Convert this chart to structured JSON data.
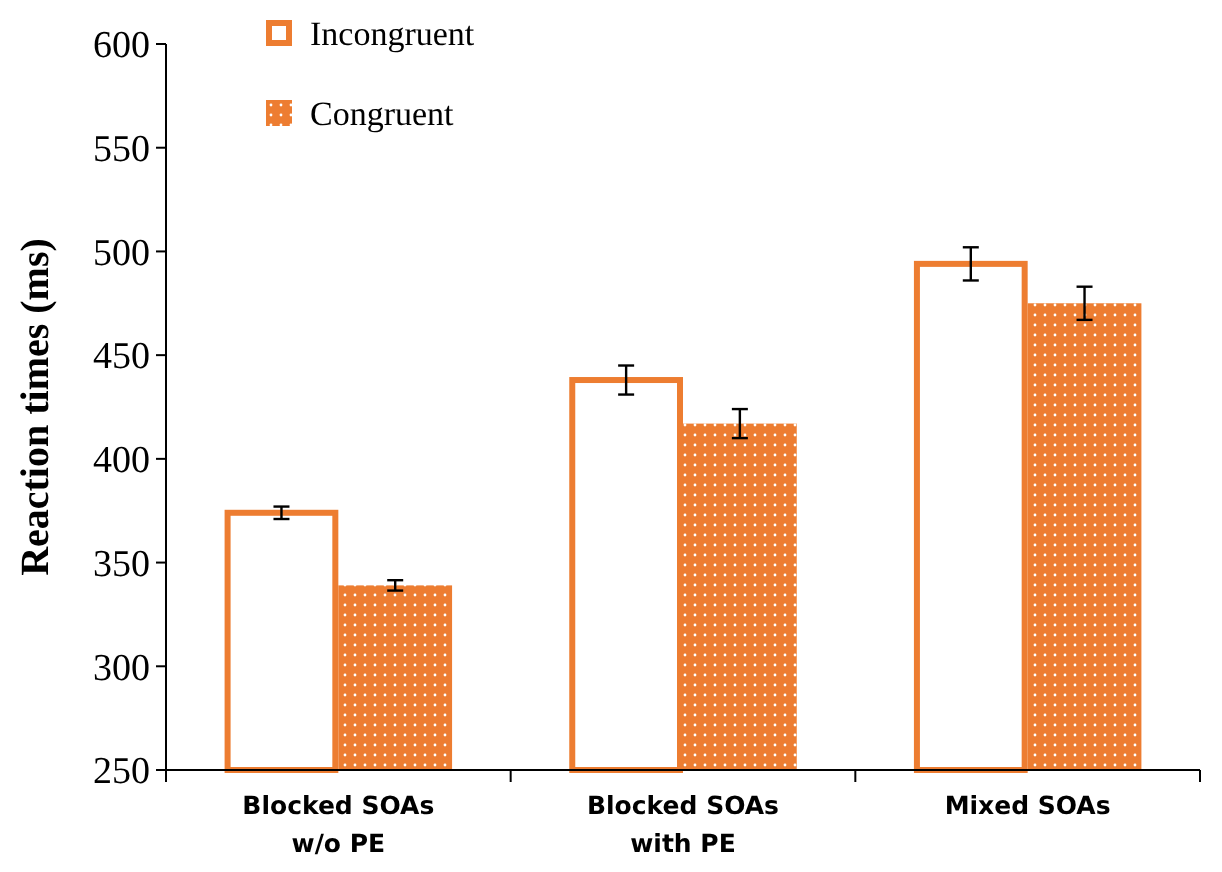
{
  "chart_data": {
    "type": "bar",
    "ylabel": "Reaction times (ms)",
    "categories": [
      "Blocked SOAs\nw/o PE",
      "Blocked SOAs\nwith PE",
      "Mixed SOAs"
    ],
    "series": [
      {
        "name": "Incongruent",
        "color": "#ed7d31",
        "values": [
          374,
          438,
          494
        ],
        "errors": [
          3,
          7,
          8
        ]
      },
      {
        "name": "Congruent",
        "color": "#ed7d31",
        "values": [
          339,
          417,
          475
        ],
        "errors": [
          2.5,
          7,
          8
        ]
      }
    ],
    "ylim": [
      250,
      600
    ],
    "yticks": [
      250,
      300,
      350,
      400,
      450,
      500,
      550,
      600
    ],
    "grid": false,
    "legend": "top left"
  }
}
